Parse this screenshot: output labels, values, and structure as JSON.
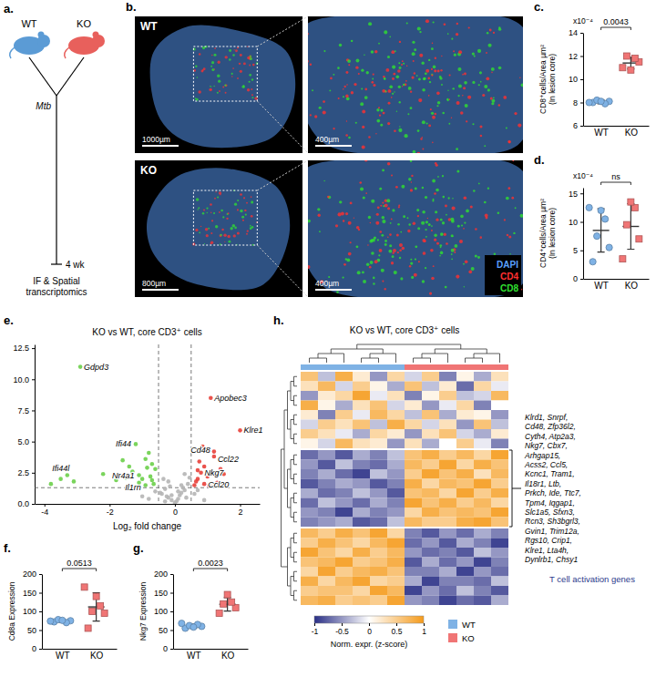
{
  "schematic": {
    "panel_label": "a.",
    "groups": [
      {
        "label": "WT",
        "color": "#5b9bd5"
      },
      {
        "label": "KO",
        "color": "#e8605c"
      }
    ],
    "infection": "Mtb",
    "timepoint": "4 wk",
    "readout": "IF & Spatial transcriptomics"
  },
  "micrographs": {
    "panel_label": "b.",
    "panels": [
      {
        "label": "WT",
        "scale_bars": [
          "1000µm",
          "400µm"
        ]
      },
      {
        "label": "KO",
        "scale_bars": [
          "800µm",
          "400µm"
        ]
      }
    ],
    "channels": [
      {
        "name": "DAPI",
        "color": "#5aa0ff"
      },
      {
        "name": "CD4",
        "color": "#ff3030"
      },
      {
        "name": "CD8",
        "color": "#30e030"
      }
    ]
  },
  "chart_data": [
    {
      "panel_label": "c.",
      "type": "strip",
      "y_label": [
        "CD8⁺cells/Area µm²",
        "(In lesion core)"
      ],
      "y_multiplier": "x10⁻⁴",
      "categories": [
        "WT",
        "KO"
      ],
      "groups": [
        {
          "color": "#7fb2e5",
          "marker": "circle",
          "values": [
            8.0,
            8.1,
            8.2,
            7.9,
            8.1,
            8.0
          ],
          "mean": 8.05,
          "sd": 0.15
        },
        {
          "color": "#f07575",
          "marker": "square",
          "values": [
            11.0,
            11.5,
            12.0,
            11.8,
            10.8
          ],
          "mean": 11.4,
          "sd": 0.5
        }
      ],
      "ylim": [
        6,
        14
      ],
      "yticks": [
        6,
        8,
        10,
        12,
        14
      ],
      "p_value": "0.0043"
    },
    {
      "panel_label": "d.",
      "type": "strip",
      "y_label": [
        "CD4⁺cells/Area µm²",
        "(In lesion core)"
      ],
      "y_multiplier": "x10⁻⁴",
      "categories": [
        "WT",
        "KO"
      ],
      "groups": [
        {
          "color": "#7fb2e5",
          "marker": "circle",
          "values": [
            3.0,
            5.5,
            7.5,
            10.5,
            12.0,
            12.5
          ],
          "mean": 8.5,
          "sd": 3.8
        },
        {
          "color": "#f07575",
          "marker": "square",
          "values": [
            3.5,
            7.0,
            9.5,
            12.5,
            13.5
          ],
          "mean": 9.2,
          "sd": 4.0
        }
      ],
      "ylim": [
        0,
        16
      ],
      "yticks": [
        0,
        5,
        10,
        15
      ],
      "p_value": "ns"
    },
    {
      "panel_label": "e.",
      "type": "scatter",
      "title": "KO vs WT, core CD3⁺ cells",
      "x_label": "Log₂ fold change",
      "xlim": [
        -4.3,
        2.6
      ],
      "xticks": [
        -4,
        -2,
        0,
        2
      ],
      "ylim": [
        0,
        12.8
      ],
      "yticks": [
        {
          "value": 0,
          "label": "0.0"
        },
        2.5,
        {
          "value": 5,
          "label": "5.0"
        },
        7.5,
        {
          "value": 10,
          "label": "10.0"
        },
        12.5
      ],
      "series": [
        {
          "color": "#b5b5b5",
          "x": [
            -0.4,
            -0.3,
            -0.2,
            -0.1,
            0.0,
            0.1,
            0.2,
            0.3,
            0.4,
            -0.35,
            -0.25,
            -0.15,
            0.05,
            0.15,
            0.25,
            0.35,
            -0.45,
            0.45,
            -0.6,
            -0.8,
            0.6,
            0.7,
            -1.0,
            0.9,
            -0.2,
            0.1,
            0.3,
            -0.3,
            0.2,
            -0.1
          ],
          "y": [
            0.8,
            1.2,
            0.5,
            0.3,
            0.1,
            0.4,
            0.9,
            1.1,
            1.6,
            2.0,
            0.6,
            1.4,
            0.2,
            0.7,
            1.3,
            0.5,
            0.9,
            2.1,
            1.0,
            0.4,
            0.8,
            1.1,
            0.6,
            0.3,
            1.8,
            1.0,
            2.4,
            0.2,
            1.5,
            0.7
          ]
        },
        {
          "color": "#6bcf4a",
          "x": [
            -2.9,
            -3.8,
            -3.5,
            -3.3,
            -3.1,
            -1.2,
            -1.1,
            -0.9,
            -1.6,
            -1.4,
            -1.3,
            -0.8,
            -0.7,
            -1.0,
            -0.6,
            -1.8,
            -0.9,
            -0.75,
            -1.1,
            -0.65,
            -1.5,
            -0.85,
            -0.7,
            -2.2
          ],
          "y": [
            11.0,
            1.6,
            2.0,
            2.3,
            1.8,
            4.8,
            2.3,
            1.5,
            3.5,
            3.0,
            2.6,
            4.1,
            3.2,
            2.0,
            2.8,
            1.9,
            3.6,
            2.2,
            1.7,
            1.6,
            2.1,
            2.9,
            1.9,
            2.4
          ]
        },
        {
          "color": "#e8403a",
          "x": [
            1.1,
            2.0,
            1.2,
            1.2,
            0.8,
            0.9,
            0.6,
            0.7,
            0.9,
            1.0,
            1.4,
            0.65,
            0.75,
            1.3,
            0.85,
            1.5,
            0.7,
            1.05
          ],
          "y": [
            8.5,
            5.9,
            4.2,
            3.8,
            2.5,
            1.6,
            1.5,
            2.0,
            3.0,
            2.2,
            2.8,
            1.8,
            3.4,
            1.7,
            4.6,
            2.4,
            2.7,
            1.45
          ]
        }
      ],
      "reference_lines": {
        "x": [
          -0.5,
          0.5
        ],
        "y": [
          1.3
        ]
      },
      "annotations": [
        {
          "text": "Gdpd3",
          "x": -2.9,
          "y": 11.0
        },
        {
          "text": "Ifi44l",
          "x": -3.5,
          "y": 2.0
        },
        {
          "text": "Ifi44",
          "x": -1.2,
          "y": 4.8
        },
        {
          "text": "Nr4a1",
          "x": -1.1,
          "y": 2.3
        },
        {
          "text": "Il1rn",
          "x": -0.9,
          "y": 1.5
        },
        {
          "text": "Apobec3",
          "x": 1.1,
          "y": 8.5
        },
        {
          "text": "Klre1",
          "x": 2.0,
          "y": 5.9
        },
        {
          "text": "Cd48",
          "x": 1.2,
          "y": 4.2
        },
        {
          "text": "Ccl22",
          "x": 1.2,
          "y": 3.8
        },
        {
          "text": "Nkg7",
          "x": 0.8,
          "y": 2.5
        },
        {
          "text": "Ccl20",
          "x": 0.9,
          "y": 1.6
        }
      ]
    },
    {
      "panel_label": "f.",
      "type": "strip",
      "y_label": [
        "Cd8a Expression"
      ],
      "categories": [
        "WT",
        "KO"
      ],
      "groups": [
        {
          "color": "#7fb2e5",
          "marker": "circle",
          "values": [
            72,
            75,
            78,
            70,
            76,
            74
          ],
          "mean": 74,
          "sd": 3
        },
        {
          "color": "#f07575",
          "marker": "square",
          "values": [
            55,
            95,
            100,
            115,
            140,
            165
          ],
          "mean": 112,
          "sd": 38
        }
      ],
      "ylim": [
        0,
        200
      ],
      "yticks": [
        0,
        50,
        100,
        150,
        200
      ],
      "p_value": "0.0513"
    },
    {
      "panel_label": "g.",
      "type": "strip",
      "y_label": [
        "Nkg7 Expression"
      ],
      "categories": [
        "WT",
        "KO"
      ],
      "groups": [
        {
          "color": "#7fb2e5",
          "marker": "circle",
          "values": [
            55,
            60,
            62,
            65,
            58,
            68
          ],
          "mean": 61,
          "sd": 5
        },
        {
          "color": "#f07575",
          "marker": "square",
          "values": [
            95,
            110,
            120,
            125,
            145
          ],
          "mean": 119,
          "sd": 18
        }
      ],
      "ylim": [
        0,
        200
      ],
      "yticks": [
        0,
        50,
        100,
        150,
        200
      ],
      "p_value": "0.0023"
    },
    {
      "panel_label": "h.",
      "type": "heatmap",
      "title": "KO vs WT, core CD3⁺ cells",
      "groups": [
        {
          "name": "WT",
          "color": "#7fb2e5"
        },
        {
          "name": "KO",
          "color": "#f07575"
        }
      ],
      "legend": "bottom",
      "column_groups": [
        "WT",
        "WT",
        "WT",
        "WT",
        "WT",
        "WT",
        "KO",
        "KO",
        "KO",
        "KO",
        "KO",
        "KO"
      ],
      "row_cluster": [
        0,
        0,
        0,
        0,
        0,
        0,
        0,
        0,
        1,
        1,
        1,
        1,
        1,
        1,
        1,
        1,
        2,
        2,
        2,
        2,
        2,
        2,
        2,
        2
      ],
      "cells": [
        [
          0.6,
          -0.3,
          0.8,
          0.2,
          -0.5,
          0.4,
          -0.2,
          0.5,
          -0.6,
          0.1,
          -0.4,
          0.3
        ],
        [
          0.3,
          0.7,
          -0.2,
          0.5,
          0.1,
          -0.4,
          0.6,
          -0.3,
          0.2,
          -0.7,
          0.4,
          -0.1
        ],
        [
          -0.5,
          0.2,
          0.4,
          0.9,
          -0.1,
          0.3,
          -0.6,
          0.1,
          0.5,
          -0.3,
          -0.2,
          0.7
        ],
        [
          0.8,
          0.1,
          -0.4,
          0.3,
          0.6,
          -0.2,
          0.2,
          -0.5,
          -0.1,
          0.4,
          -0.6,
          0.0
        ],
        [
          0.2,
          -0.6,
          0.5,
          -0.1,
          0.7,
          0.4,
          -0.3,
          0.6,
          -0.4,
          0.2,
          0.1,
          -0.5
        ],
        [
          -0.2,
          0.5,
          0.3,
          0.6,
          -0.3,
          0.8,
          0.4,
          -0.2,
          0.3,
          -0.5,
          0.6,
          -0.3
        ],
        [
          0.5,
          0.3,
          -0.1,
          -0.4,
          0.4,
          0.2,
          -0.5,
          0.3,
          0.6,
          -0.2,
          -0.4,
          0.2
        ],
        [
          0.1,
          -0.2,
          0.7,
          0.3,
          0.2,
          -0.5,
          0.3,
          -0.4,
          0.0,
          0.5,
          -0.1,
          -0.6
        ],
        [
          -0.7,
          -0.5,
          -0.8,
          -0.4,
          -0.6,
          -0.3,
          0.6,
          0.8,
          0.5,
          0.7,
          0.4,
          0.9
        ],
        [
          -0.5,
          -0.8,
          -0.3,
          -0.6,
          -0.7,
          -0.4,
          0.7,
          0.5,
          0.9,
          0.4,
          0.8,
          0.6
        ],
        [
          -0.6,
          -0.4,
          -0.7,
          -0.9,
          -0.3,
          -0.5,
          0.5,
          0.9,
          0.6,
          0.8,
          0.3,
          0.7
        ],
        [
          -0.8,
          -0.6,
          -0.4,
          -0.5,
          -0.8,
          -0.6,
          0.8,
          0.4,
          0.7,
          0.6,
          0.9,
          0.5
        ],
        [
          -0.4,
          -0.7,
          -0.6,
          -0.3,
          -0.5,
          -0.8,
          0.6,
          0.7,
          0.4,
          0.9,
          0.5,
          0.8
        ],
        [
          -0.7,
          -0.3,
          -0.5,
          -0.7,
          -0.4,
          -0.6,
          0.9,
          0.6,
          0.8,
          0.5,
          0.7,
          0.4
        ],
        [
          -0.5,
          -0.6,
          -0.9,
          -0.4,
          -0.6,
          -0.5,
          0.4,
          0.8,
          0.6,
          0.7,
          0.6,
          0.9
        ],
        [
          -0.6,
          -0.5,
          -0.4,
          -0.8,
          -0.7,
          -0.3,
          0.7,
          0.5,
          0.5,
          0.8,
          0.9,
          0.6
        ],
        [
          0.7,
          0.5,
          0.8,
          0.6,
          0.9,
          0.4,
          -0.6,
          -0.8,
          -0.5,
          -0.7,
          -0.4,
          -0.6
        ],
        [
          0.5,
          0.8,
          0.6,
          0.4,
          0.7,
          0.9,
          -0.7,
          -0.5,
          -0.8,
          -0.4,
          -0.6,
          -0.9
        ],
        [
          0.9,
          0.6,
          0.4,
          0.8,
          0.5,
          0.7,
          -0.5,
          -0.7,
          -0.6,
          -0.8,
          -0.3,
          -0.5
        ],
        [
          0.6,
          0.7,
          0.9,
          0.5,
          0.6,
          0.8,
          -0.8,
          -0.4,
          -0.7,
          -0.5,
          -0.9,
          -0.6
        ],
        [
          0.4,
          0.9,
          0.5,
          0.7,
          0.8,
          0.6,
          -0.6,
          -0.6,
          -0.4,
          -0.9,
          -0.5,
          -0.7
        ],
        [
          0.8,
          0.4,
          0.7,
          0.9,
          0.4,
          0.5,
          -0.4,
          -0.9,
          -0.6,
          -0.6,
          -0.7,
          -0.3
        ],
        [
          0.5,
          0.6,
          0.6,
          0.4,
          0.9,
          0.7,
          -0.9,
          -0.5,
          -0.7,
          -0.3,
          -0.6,
          -0.8
        ],
        [
          0.7,
          0.8,
          0.5,
          0.6,
          0.5,
          0.9,
          -0.5,
          -0.6,
          -0.9,
          -0.7,
          -0.8,
          -0.4
        ]
      ],
      "colorbar": {
        "label": "Norm. expr. (z-score)",
        "range": [
          -1,
          1
        ],
        "ticks": [
          -1,
          -0.5,
          0,
          0.5,
          1
        ],
        "colors": [
          "#2a2f86",
          "#ffffff",
          "#f59b1c"
        ]
      },
      "highlight_cluster": 1,
      "highlight_genes": [
        "Klrd1, Snrpf,",
        "Cd48, Zfp36l2,",
        "Cyth4, Atp2a3,",
        "Nkg7, Cbx7,",
        "Arhgap15,",
        "Acss2, Ccl5,",
        "Kcnc1, Tram1,",
        "Il18r1, Ltb,",
        "Prkch, Ide, Ttc7,",
        "Tpm4, Iqgap1,",
        "Slc1a5, Sfxn3,",
        "Rcn3, Sh3bgrl3,",
        "Gvin1, Trim12a,",
        "Rgs10, Crip1,",
        "Klre1, Lta4h,",
        "Dynlrb1, Chsy1"
      ],
      "highlight_label": "T cell activation genes"
    }
  ]
}
